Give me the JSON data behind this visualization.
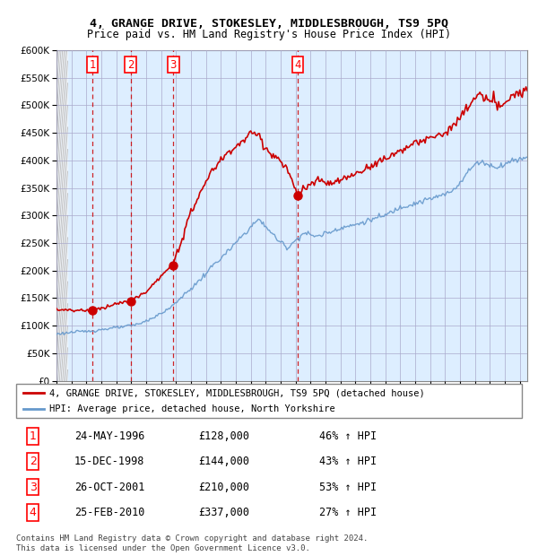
{
  "title1": "4, GRANGE DRIVE, STOKESLEY, MIDDLESBROUGH, TS9 5PQ",
  "title2": "Price paid vs. HM Land Registry's House Price Index (HPI)",
  "transactions": [
    {
      "num": 1,
      "date": "1996-05-24",
      "price": 128000
    },
    {
      "num": 2,
      "date": "1998-12-15",
      "price": 144000
    },
    {
      "num": 3,
      "date": "2001-10-26",
      "price": 210000
    },
    {
      "num": 4,
      "date": "2010-02-25",
      "price": 337000
    }
  ],
  "legend_line1": "4, GRANGE DRIVE, STOKESLEY, MIDDLESBROUGH, TS9 5PQ (detached house)",
  "legend_line2": "HPI: Average price, detached house, North Yorkshire",
  "footer": "Contains HM Land Registry data © Crown copyright and database right 2024.\nThis data is licensed under the Open Government Licence v3.0.",
  "table_rows": [
    [
      "1",
      "24-MAY-1996",
      "£128,000",
      "46% ↑ HPI"
    ],
    [
      "2",
      "15-DEC-1998",
      "£144,000",
      "43% ↑ HPI"
    ],
    [
      "3",
      "26-OCT-2001",
      "£210,000",
      "53% ↑ HPI"
    ],
    [
      "4",
      "25-FEB-2010",
      "£337,000",
      "27% ↑ HPI"
    ]
  ],
  "hpi_color": "#6699cc",
  "price_color": "#cc0000",
  "bg_color": "#ddeeff",
  "grid_color": "#aaaacc",
  "dashed_color": "#cc0000",
  "ylim": [
    0,
    600000
  ],
  "yticks": [
    0,
    50000,
    100000,
    150000,
    200000,
    250000,
    300000,
    350000,
    400000,
    450000,
    500000,
    550000,
    600000
  ],
  "xlim_start": 1994.0,
  "xlim_end": 2025.5,
  "figsize": [
    6.0,
    6.2
  ],
  "dpi": 100
}
